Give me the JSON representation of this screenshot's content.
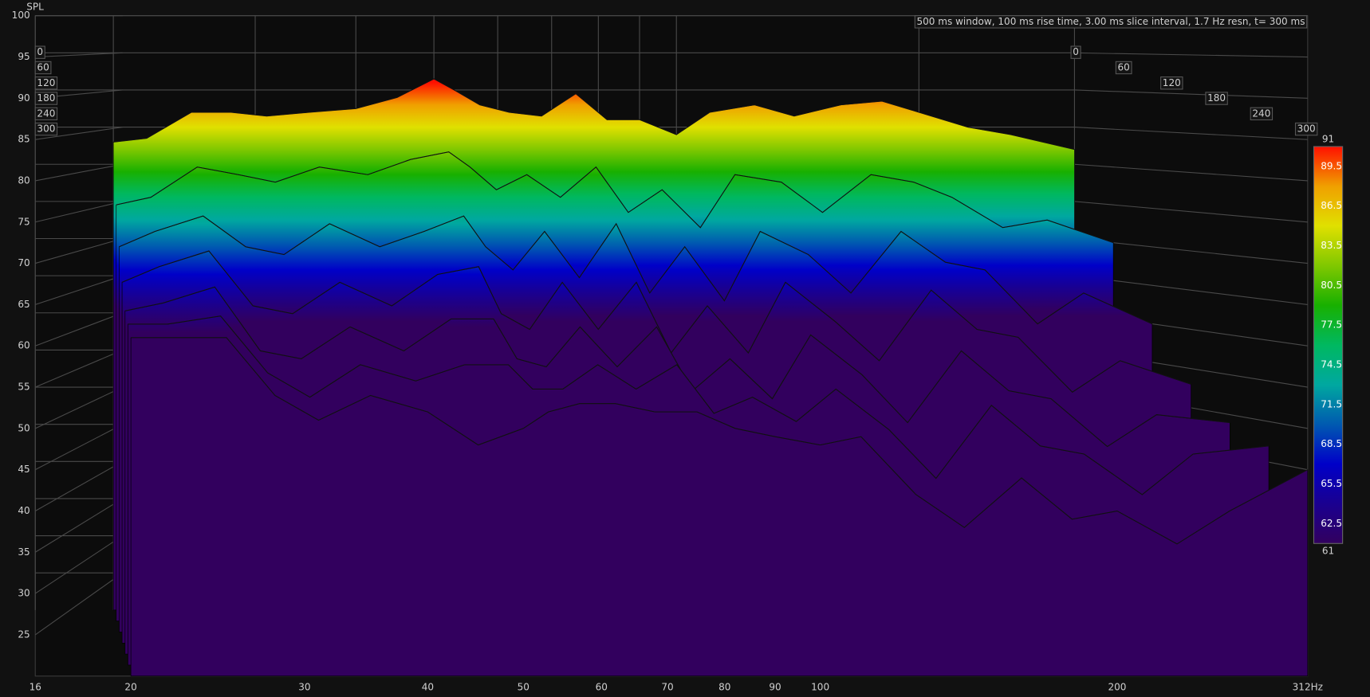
{
  "chart_data": {
    "type": "waterfall",
    "y_label": "SPL",
    "info": "500 ms window, 100 ms rise time, 3.00 ms slice interval, 1.7 Hz resn, t= 300 ms",
    "log_x": true,
    "grid": true,
    "xlim": [
      16,
      312
    ],
    "xticks": [
      16,
      20,
      30,
      40,
      50,
      60,
      70,
      80,
      90,
      100,
      200,
      {
        "value": 312,
        "label": "312Hz"
      }
    ],
    "ylim": [
      20,
      100
    ],
    "yticks": [
      25,
      30,
      35,
      40,
      45,
      50,
      55,
      60,
      65,
      70,
      75,
      80,
      85,
      90,
      95,
      100
    ],
    "zlim": [
      0,
      300
    ],
    "zticks": [
      0,
      60,
      120,
      180,
      240,
      300
    ],
    "x": [
      20,
      22,
      25,
      28,
      31,
      35,
      40,
      45,
      50,
      53,
      57,
      62,
      68,
      75,
      82,
      90,
      100,
      110,
      125,
      140,
      160,
      180,
      200,
      230,
      260,
      312
    ],
    "slices": [
      {
        "t": 0,
        "values": [
          83,
          83.5,
          87,
          87,
          86.5,
          87,
          87.5,
          89,
          91.5,
          90,
          88,
          87,
          86.5,
          89.5,
          86,
          86,
          84,
          87,
          88,
          86.5,
          88,
          88.5,
          87,
          85,
          84,
          82
        ]
      },
      {
        "t": 50,
        "values": [
          75,
          76,
          80,
          79,
          78,
          80,
          79,
          81,
          82,
          80,
          77,
          79,
          76,
          80,
          74,
          77,
          72,
          79,
          78,
          74,
          79,
          78,
          76,
          72,
          73,
          70
        ]
      },
      {
        "t": 100,
        "values": [
          70,
          72,
          74,
          70,
          69,
          73,
          70,
          72,
          74,
          70,
          67,
          72,
          66,
          73,
          64,
          70,
          63,
          72,
          69,
          64,
          72,
          68,
          67,
          60,
          64,
          60
        ]
      },
      {
        "t": 150,
        "values": [
          66,
          68,
          70,
          63,
          62,
          66,
          63,
          67,
          68,
          62,
          60,
          66,
          60,
          66,
          57,
          63,
          57,
          66,
          61,
          56,
          65,
          60,
          59,
          52,
          56,
          53
        ]
      },
      {
        "t": 200,
        "values": [
          63,
          64,
          66,
          58,
          57,
          61,
          58,
          62,
          62,
          57,
          56,
          61,
          56,
          61,
          53,
          57,
          52,
          60,
          55,
          49,
          58,
          53,
          52,
          46,
          50,
          49
        ]
      },
      {
        "t": 250,
        "values": [
          62,
          62,
          63,
          56,
          53,
          57,
          55,
          57,
          57,
          54,
          54,
          57,
          54,
          57,
          51,
          53,
          50,
          54,
          49,
          43,
          52,
          47,
          46,
          41,
          46,
          47
        ]
      },
      {
        "t": 300,
        "values": [
          61,
          61,
          61,
          54,
          51,
          54,
          52,
          48,
          50,
          52,
          53,
          53,
          52,
          52,
          50,
          49,
          48,
          49,
          42,
          38,
          44,
          39,
          40,
          36,
          40,
          45
        ]
      }
    ],
    "colorbar": {
      "min": 61,
      "max": 91,
      "ticks": [
        89.5,
        86.5,
        83.5,
        80.5,
        77.5,
        74.5,
        71.5,
        68.5,
        65.5,
        62.5
      ],
      "colors": [
        "#32005e",
        "#1a0090",
        "#0000c8",
        "#005ab0",
        "#00a8a0",
        "#00b860",
        "#18b000",
        "#80c800",
        "#e0e000",
        "#f0a000",
        "#ff1000"
      ]
    }
  }
}
